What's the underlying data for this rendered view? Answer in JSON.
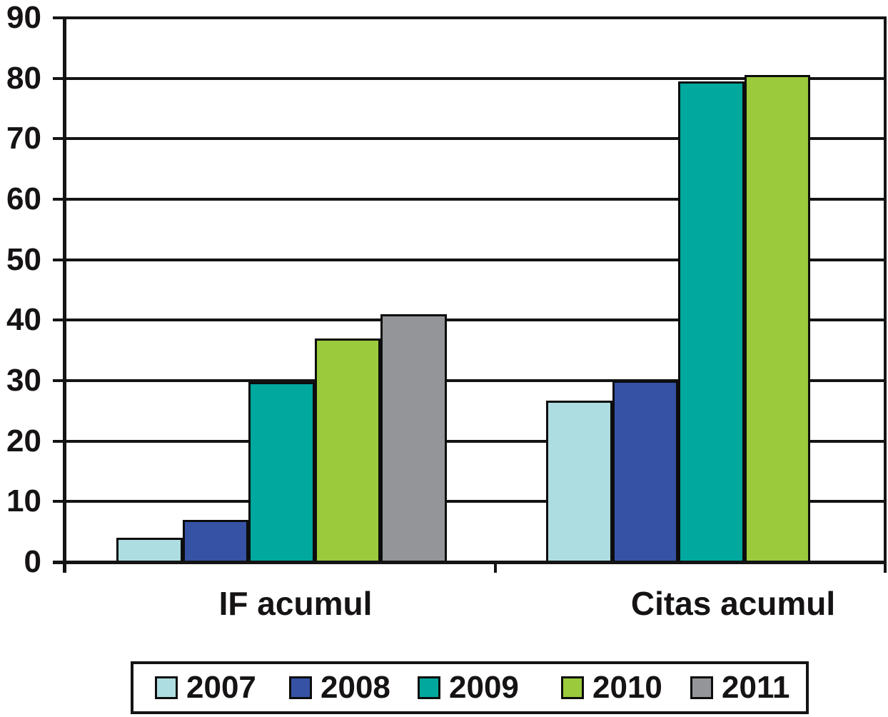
{
  "chart_data": {
    "type": "bar",
    "title": "",
    "xlabel": "",
    "ylabel": "",
    "categories": [
      "IF acumul",
      "Citas acumul"
    ],
    "series": [
      {
        "name": "2007",
        "color": "#addde0",
        "values": [
          4,
          26.7
        ]
      },
      {
        "name": "2008",
        "color": "#3652a5",
        "values": [
          7,
          30
        ]
      },
      {
        "name": "2009",
        "color": "#00a89e",
        "values": [
          29.8,
          79.5
        ]
      },
      {
        "name": "2010",
        "color": "#9bca3c",
        "values": [
          37,
          80.5
        ]
      },
      {
        "name": "2011",
        "color": "#939598",
        "values": [
          41,
          null
        ]
      }
    ],
    "ylim": [
      0,
      90
    ],
    "yticks": [
      0,
      10,
      20,
      30,
      40,
      50,
      60,
      70,
      80,
      90
    ],
    "grid": true,
    "gridline_color": "#141414",
    "bar_border_color": "#0d0d0d",
    "legend_position": "bottom",
    "legend_entries": [
      "2007",
      "2008",
      "2009",
      "2010",
      "2011"
    ]
  }
}
